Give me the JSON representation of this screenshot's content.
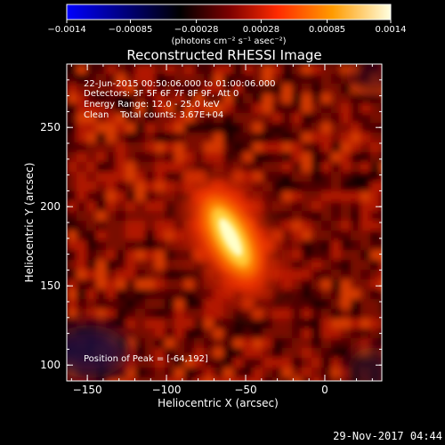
{
  "chart_data": {
    "type": "heatmap",
    "title": "Reconstructed RHESSI Image",
    "xlabel": "Heliocentric X (arcsec)",
    "ylabel": "Heliocentric Y (arcsec)",
    "xlim": [
      -163,
      36
    ],
    "ylim": [
      90,
      290
    ],
    "xticks": [
      {
        "value": -150,
        "label": "−150"
      },
      {
        "value": -100,
        "label": "−100"
      },
      {
        "value": -50,
        "label": "−50"
      },
      {
        "value": 0,
        "label": "0"
      }
    ],
    "yticks": [
      {
        "value": 100,
        "label": "100"
      },
      {
        "value": 150,
        "label": "150"
      },
      {
        "value": 200,
        "label": "200"
      },
      {
        "value": 250,
        "label": "250"
      }
    ],
    "colorbar": {
      "min": -0.0014,
      "max": 0.0014,
      "ticks": [
        {
          "value": -0.0014,
          "label": "−0.0014"
        },
        {
          "value": -0.00085,
          "label": "−0.00085"
        },
        {
          "value": -0.00028,
          "label": "−0.00028"
        },
        {
          "value": 0.00028,
          "label": "0.00028"
        },
        {
          "value": 0.00085,
          "label": "0.00085"
        },
        {
          "value": 0.0014,
          "label": "0.0014"
        }
      ],
      "units": "(photons cm⁻² s⁻¹ asec⁻²)"
    },
    "annotations": {
      "time_range": "22-Jun-2015 00:50:06.000 to 01:00:06.000",
      "detectors": "Detectors: 3F 5F 6F 7F 8F 9F, Att 0",
      "energy_range": "Energy Range: 12.0 - 25.0 keV",
      "clean_counts": "Clean    Total counts: 3.67E+04",
      "peak_position": "Position of Peak = [-64,192]"
    },
    "source": {
      "peak_x": -64,
      "peak_y": 192,
      "peak_value": 0.0014,
      "background_value": 0.0003
    },
    "colormap": [
      "#0000ff",
      "#000000",
      "#8b0000",
      "#ff2a00",
      "#ff9b00",
      "#ffffc8"
    ]
  },
  "footer": {
    "timestamp": "29-Nov-2017 04:44"
  }
}
